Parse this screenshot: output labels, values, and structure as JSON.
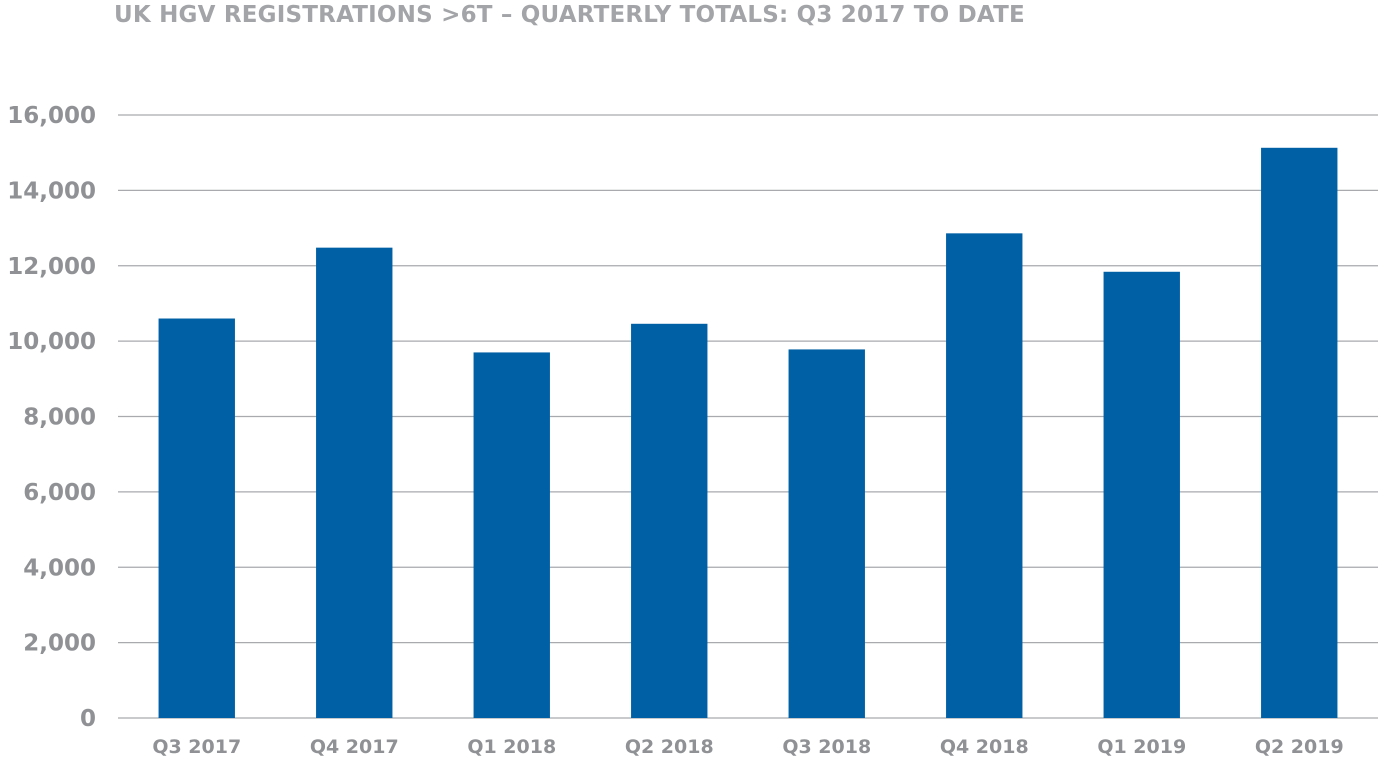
{
  "chart_data": {
    "type": "bar",
    "title": "UK HGV REGISTRATIONS >6T – QUARTERLY TOTALS: Q3 2017 TO DATE",
    "xlabel": "",
    "ylabel": "",
    "categories": [
      "Q3 2017",
      "Q4 2017",
      "Q1 2018",
      "Q2 2018",
      "Q3 2018",
      "Q4 2018",
      "Q1 2019",
      "Q2 2019"
    ],
    "values": [
      10600,
      12480,
      9700,
      10460,
      9780,
      12860,
      11840,
      15130
    ],
    "ylim": [
      0,
      16000
    ],
    "yticks": [
      0,
      2000,
      4000,
      6000,
      8000,
      10000,
      12000,
      14000,
      16000
    ],
    "ytick_labels": [
      "0",
      "2,000",
      "4,000",
      "6,000",
      "8,000",
      "10,000",
      "12,000",
      "14,000",
      "16,000"
    ],
    "grid": true,
    "legend": "none",
    "colors": {
      "bar": "#0060a5",
      "grid": "#a8aaad",
      "tick_text": "#8f9194",
      "title": "#a2a4a7"
    }
  }
}
